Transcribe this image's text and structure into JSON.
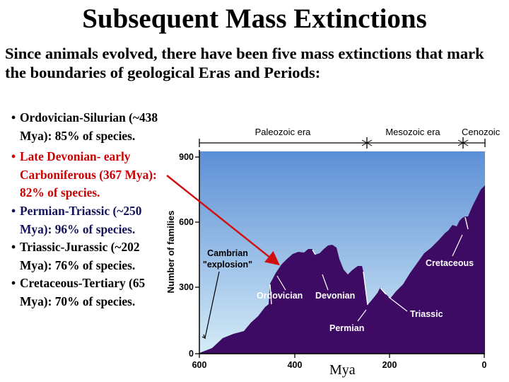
{
  "slide": {
    "title": "Subsequent Mass Extinctions",
    "intro": "Since animals evolved, there have been five mass extinctions that mark the boundaries of geological Eras and Periods:",
    "bullets": [
      {
        "text": "Ordovician-Silurian (~438 Mya): 85% of species.",
        "color": "#000000"
      },
      {
        "text": "Late Devonian- early Carboniferous (367 Mya): 82% of species.",
        "color": "#cc0000"
      },
      {
        "text": "Permian-Triassic (~250 Mya): 96% of species.",
        "color": "#14145a"
      },
      {
        "text": "Triassic-Jurassic (~202 Mya): 76% of species.",
        "color": "#000000"
      },
      {
        "text": "Cretaceous-Tertiary (65 Mya): 70% of species.",
        "color": "#000000"
      }
    ],
    "xaxis_caption": "Mya"
  },
  "figure": {
    "eras": [
      "Paleozoic era",
      "Mesozoic era",
      "Cenozoic"
    ],
    "ylabel": "Number of families",
    "yticks": [
      "900",
      "600",
      "300",
      "0"
    ],
    "xticks": [
      "600",
      "400",
      "200",
      "0"
    ],
    "annotations": {
      "cambrian": [
        "Cambrian",
        "\"explosion\""
      ],
      "ordovician": "Ordovician",
      "devonian": "Devonian",
      "permian": "Permian",
      "triassic": "Triassic",
      "cretaceous": "Cretaceous"
    },
    "colors": {
      "fill": "#3d0b63",
      "sky_top": "#5c8fd6",
      "sky_bottom": "#d4ecf7",
      "arrow": "#d01010"
    }
  }
}
